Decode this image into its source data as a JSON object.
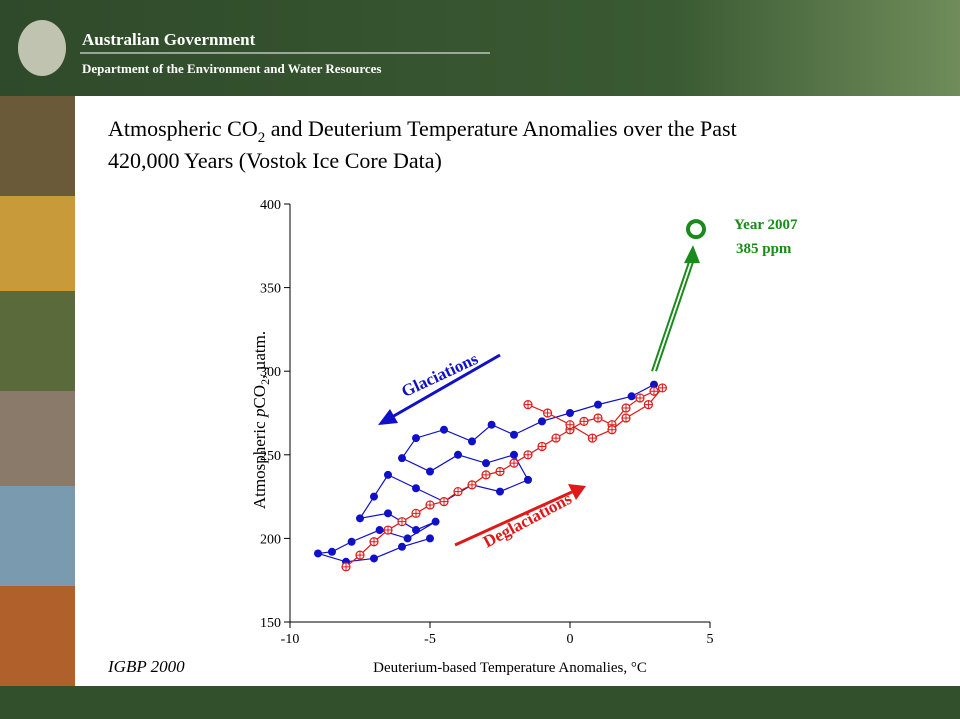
{
  "header": {
    "title": "Australian Government",
    "subtitle": "Department of the Environment and Water Resources"
  },
  "chart_data": {
    "type": "scatter",
    "title": {
      "pre": "Atmospheric CO",
      "sub": "2",
      "post": " and Deuterium Temperature Anomalies over the Past",
      "line2": "420,000 Years (Vostok Ice Core Data)"
    },
    "x_label": "Deuterium-based Temperature Anomalies, °C",
    "y_label": {
      "pre": "Atmospheric ",
      "italic": "p",
      "mid": "CO",
      "sub": "2",
      "post": ", µatm."
    },
    "xlim": [
      -10,
      5
    ],
    "xticks": [
      -10,
      -5,
      0,
      5
    ],
    "ylim": [
      150,
      400
    ],
    "yticks": [
      150,
      200,
      250,
      300,
      350,
      400
    ],
    "series": [
      {
        "color": "#1010c8",
        "marker": "filled",
        "x": [
          3,
          2.2,
          1,
          0,
          -1,
          -2,
          -2.8,
          -3.5,
          -4.5,
          -5.5,
          -6,
          -5,
          -4,
          -3,
          -2,
          -1.5,
          -2.5,
          -3.5,
          -4.5,
          -5.5,
          -6.5,
          -7,
          -7.5,
          -6.5,
          -5.5,
          -4.8,
          -5.8,
          -6.8,
          -7.8,
          -8.5,
          -9,
          -8,
          -7,
          -6,
          -5
        ],
        "values": [
          292,
          285,
          280,
          275,
          270,
          262,
          268,
          258,
          265,
          260,
          248,
          240,
          250,
          245,
          250,
          235,
          228,
          232,
          222,
          230,
          238,
          225,
          212,
          215,
          205,
          210,
          200,
          205,
          198,
          192,
          191,
          186,
          188,
          195,
          200
        ]
      },
      {
        "color": "#e01818",
        "marker": "open",
        "x": [
          -8,
          -7.5,
          -7,
          -6.5,
          -6,
          -5.5,
          -5,
          -4.5,
          -4,
          -3.5,
          -3,
          -2.5,
          -2,
          -1.5,
          -1,
          -0.5,
          0,
          0.5,
          1,
          1.5,
          2,
          2.5,
          3,
          3.3,
          2.8,
          2,
          1.5,
          0.8,
          0,
          -0.8,
          -1.5
        ],
        "values": [
          183,
          190,
          198,
          205,
          210,
          215,
          220,
          222,
          228,
          232,
          238,
          240,
          245,
          250,
          255,
          260,
          265,
          270,
          272,
          268,
          278,
          284,
          288,
          290,
          280,
          272,
          265,
          260,
          268,
          275,
          280
        ]
      }
    ],
    "highlight": {
      "x": 4.5,
      "value": 385,
      "label": "Year 2007",
      "value_label": "385 ppm",
      "color": "#1a8a1a"
    },
    "annotations": {
      "glaciations": "Glaciations",
      "deglaciations": "Deglaciations"
    },
    "source": "IGBP 2000"
  }
}
